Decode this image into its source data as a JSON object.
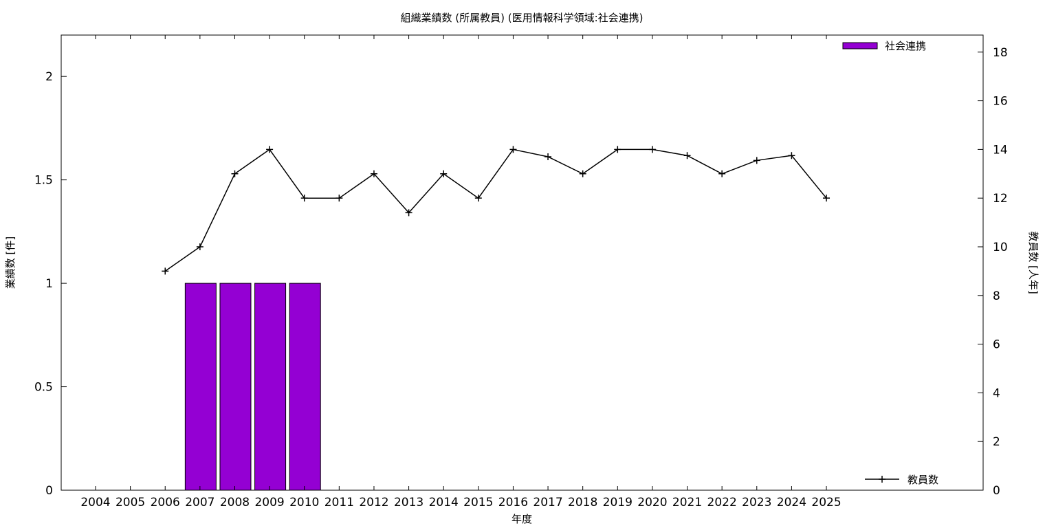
{
  "chart_data": {
    "type": "bar",
    "title": "組織業績数 (所属教員) (医用情報科学領域:社会連携)",
    "xlabel": "年度",
    "ylabel": "業績数 [件]",
    "y2label": "教員数 [人年]",
    "categories": [
      "2004",
      "2005",
      "2006",
      "2007",
      "2008",
      "2009",
      "2010",
      "2011",
      "2012",
      "2013",
      "2014",
      "2015",
      "2016",
      "2017",
      "2018",
      "2019",
      "2020",
      "2021",
      "2022",
      "2023",
      "2024",
      "2025"
    ],
    "ylim": [
      0,
      2.2
    ],
    "yticks": [
      "0",
      "0.5",
      "1",
      "1.5",
      "2"
    ],
    "y2lim": [
      0,
      18.7
    ],
    "y2ticks": [
      "0",
      "2",
      "4",
      "6",
      "8",
      "10",
      "12",
      "14",
      "16",
      "18"
    ],
    "series": [
      {
        "name": "社会連携",
        "kind": "bar",
        "color": "#9400d3",
        "axis": "left",
        "values": [
          0,
          0,
          0,
          1,
          1,
          1,
          1,
          0,
          0,
          0,
          0,
          0,
          0,
          0,
          0,
          0,
          0,
          0,
          0,
          0,
          0,
          0
        ]
      },
      {
        "name": "教員数",
        "kind": "line",
        "color": "#000000",
        "axis": "right",
        "values": [
          null,
          null,
          9.0,
          10.0,
          13.0,
          14.0,
          12.0,
          12.0,
          13.0,
          11.4,
          13.0,
          12.0,
          14.0,
          13.7,
          13.0,
          14.0,
          14.0,
          13.75,
          13.0,
          13.55,
          13.75,
          12.0
        ]
      }
    ],
    "legend": [
      {
        "label": "社会連携",
        "placement": "top-right"
      },
      {
        "label": "教員数",
        "placement": "bottom-right"
      }
    ],
    "grid": false
  }
}
